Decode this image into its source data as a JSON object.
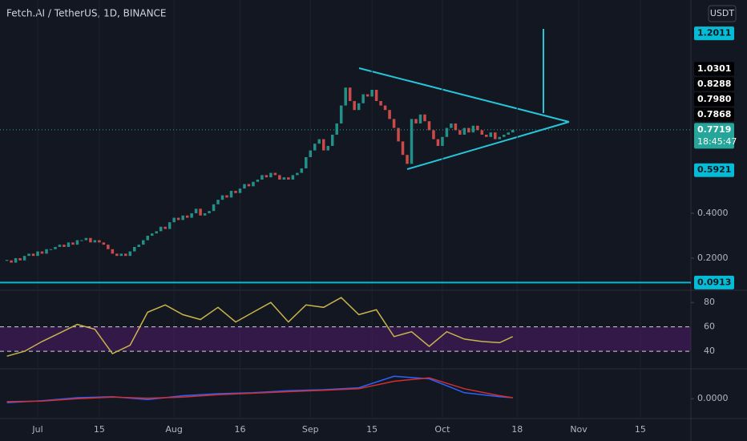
{
  "chart_data": {
    "type": "candlestick",
    "title": "Fetch.AI / TetherUS, 1D, BINANCE",
    "currency": "USDT",
    "xlim": [
      -1.57,
      155.5
    ],
    "xticks": [
      {
        "value": 7,
        "label": "Jul"
      },
      {
        "value": 21,
        "label": "15"
      },
      {
        "value": 38,
        "label": "Aug"
      },
      {
        "value": 53,
        "label": "16"
      },
      {
        "value": 69,
        "label": "Sep"
      },
      {
        "value": 83,
        "label": "15"
      },
      {
        "value": 99,
        "label": "Oct"
      },
      {
        "value": 116,
        "label": "18"
      },
      {
        "value": 130,
        "label": "Nov"
      },
      {
        "value": 144,
        "label": "15"
      }
    ],
    "ylim": [
      0.057,
      1.35
    ],
    "yticks": [
      {
        "value": 0.4,
        "label": "0.4000"
      },
      {
        "value": 0.2,
        "label": "0.2000"
      }
    ],
    "color_up": "#26a69a",
    "color_down": "#ef5350",
    "closes": [
      0.19,
      0.18,
      0.2,
      0.19,
      0.21,
      0.22,
      0.21,
      0.23,
      0.22,
      0.24,
      0.24,
      0.25,
      0.26,
      0.25,
      0.27,
      0.26,
      0.28,
      0.28,
      0.29,
      0.27,
      0.28,
      0.27,
      0.26,
      0.24,
      0.22,
      0.21,
      0.22,
      0.21,
      0.23,
      0.25,
      0.26,
      0.28,
      0.3,
      0.31,
      0.32,
      0.34,
      0.33,
      0.36,
      0.38,
      0.37,
      0.39,
      0.38,
      0.4,
      0.42,
      0.39,
      0.4,
      0.41,
      0.44,
      0.46,
      0.48,
      0.47,
      0.5,
      0.49,
      0.51,
      0.53,
      0.52,
      0.54,
      0.55,
      0.57,
      0.56,
      0.58,
      0.57,
      0.55,
      0.56,
      0.55,
      0.57,
      0.58,
      0.6,
      0.65,
      0.68,
      0.71,
      0.73,
      0.68,
      0.7,
      0.75,
      0.8,
      0.88,
      0.96,
      0.9,
      0.86,
      0.89,
      0.93,
      0.92,
      0.95,
      0.9,
      0.88,
      0.86,
      0.82,
      0.78,
      0.72,
      0.66,
      0.62,
      0.82,
      0.8,
      0.84,
      0.81,
      0.77,
      0.73,
      0.7,
      0.74,
      0.78,
      0.8,
      0.77,
      0.75,
      0.78,
      0.76,
      0.79,
      0.77,
      0.75,
      0.74,
      0.76,
      0.73,
      0.74,
      0.75,
      0.76,
      0.7719
    ],
    "levels": [
      1.2011,
      1.0301,
      0.8288,
      {
        "value": 0.798,
        "label": "0.7980"
      },
      0.7868,
      0.7719,
      0.5921,
      0.0913
    ],
    "level_colors": [
      "#00bcd4",
      "#000000",
      "#000000",
      "#000000",
      "#000000",
      "#26a69a",
      "#00bcd4",
      "#00bcd4"
    ],
    "countdown": "18:45:47",
    "rsi": {
      "ylim": [
        25.6,
        90
      ],
      "yticks": [
        40,
        60,
        80
      ],
      "color": "#c8b44a",
      "x": [
        0,
        4,
        8,
        12,
        16,
        20,
        24,
        28,
        32,
        36,
        40,
        44,
        48,
        52,
        56,
        60,
        64,
        68,
        72,
        76,
        80,
        84,
        88,
        92,
        96,
        100,
        104,
        108,
        112,
        115
      ],
      "values": [
        36,
        40,
        48,
        55,
        62,
        58,
        38,
        45,
        72,
        78,
        70,
        66,
        76,
        64,
        72,
        80,
        64,
        78,
        76,
        84,
        70,
        74,
        52,
        56,
        44,
        56,
        50,
        48,
        47,
        52
      ]
    },
    "macd": {
      "ylim": [
        -0.04,
        0.06
      ],
      "yticks": [
        {
          "value": 0,
          "label": "0.0000"
        }
      ],
      "x": [
        0,
        8,
        16,
        24,
        32,
        40,
        48,
        56,
        64,
        72,
        80,
        88,
        96,
        104,
        112,
        115
      ],
      "series": [
        {
          "color": "#2962ff",
          "values": [
            -0.008,
            -0.004,
            0.002,
            0.004,
            -0.002,
            0.006,
            0.01,
            0.012,
            0.016,
            0.018,
            0.022,
            0.045,
            0.04,
            0.012,
            0.004,
            0.002
          ]
        },
        {
          "color": "#d32f2f",
          "values": [
            -0.006,
            -0.005,
            0.0,
            0.003,
            0.001,
            0.003,
            0.008,
            0.011,
            0.014,
            0.017,
            0.02,
            0.035,
            0.042,
            0.02,
            0.006,
            0.002
          ]
        }
      ]
    }
  }
}
